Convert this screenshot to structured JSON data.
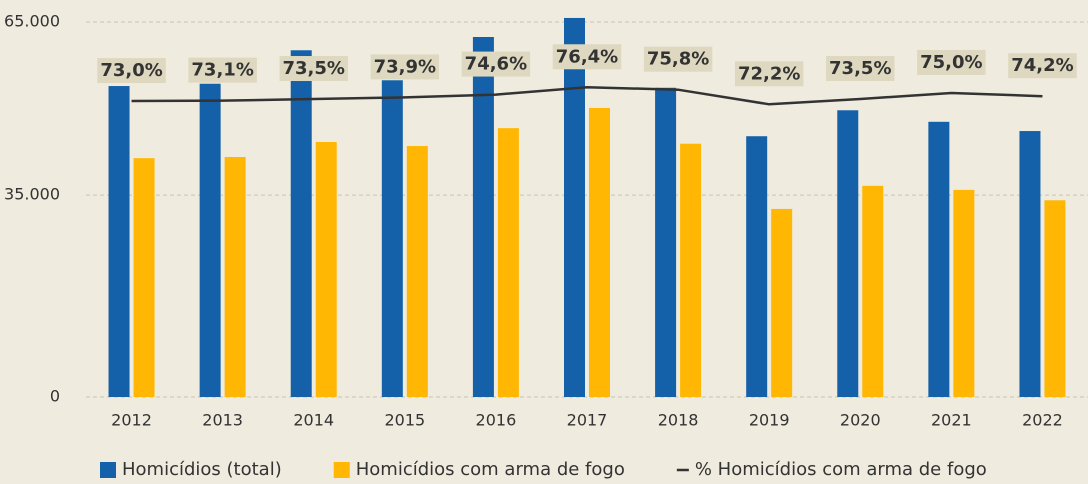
{
  "chart_data": {
    "type": "bar",
    "categories": [
      "2012",
      "2013",
      "2014",
      "2015",
      "2016",
      "2017",
      "2018",
      "2019",
      "2020",
      "2021",
      "2022"
    ],
    "series": [
      {
        "name": "Homicídios (total)",
        "color": "#1461a9",
        "type": "bar",
        "values": [
          53900,
          54300,
          60100,
          54900,
          62400,
          65700,
          53600,
          45200,
          49700,
          47700,
          46100
        ]
      },
      {
        "name": "Homicídios com arma de fogo",
        "color": "#ffb703",
        "type": "bar",
        "values": [
          41400,
          41600,
          44200,
          43500,
          46600,
          50100,
          43900,
          32600,
          36600,
          35900,
          34100
        ]
      },
      {
        "name": "% Homicídios com arma de fogo",
        "color": "#333333",
        "type": "line",
        "axis": "y2",
        "values": [
          73.0,
          73.1,
          73.5,
          73.9,
          74.6,
          76.4,
          75.8,
          72.2,
          73.5,
          75.0,
          74.2
        ],
        "value_labels": [
          "73,0%",
          "73,1%",
          "73,5%",
          "73,9%",
          "74,6%",
          "76,4%",
          "75,8%",
          "72,2%",
          "73,5%",
          "75,0%",
          "74,2%"
        ]
      }
    ],
    "ylim": [
      0,
      65000
    ],
    "yticks": [
      0,
      {
        "value": 35000,
        "label": "35.000"
      },
      {
        "value": 65000,
        "label": "65.000"
      }
    ],
    "y2lim": [
      0,
      92.5
    ],
    "grid": true,
    "legend": "bottom"
  }
}
